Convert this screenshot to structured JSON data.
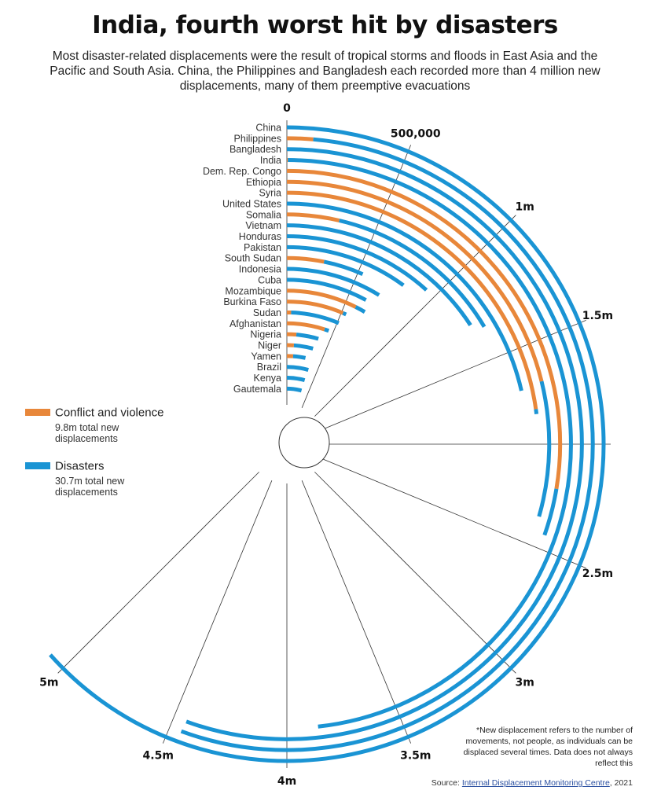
{
  "title": "India, fourth worst hit by disasters",
  "subtitle": "Most disaster-related displacements were the result of tropical storms and floods in East Asia and the Pacific and South Asia. China, the Philippines and Bangladesh each recorded more than 4 million new displacements, many of them preemptive evacuations",
  "legend": {
    "conflict": {
      "label": "Conflict and violence",
      "sub": "9.8m total new displacements",
      "color": "#E8873A"
    },
    "disasters": {
      "label": "Disasters",
      "sub": "30.7m total new displacements",
      "color": "#1A94D4"
    }
  },
  "note": "*New displacement refers to the number of movements, not people, as individuals can be displaced several times. Data does not always reflect this",
  "source": {
    "prefix": "Source: ",
    "link": "Internal Displacement Monitoring Centre",
    "suffix": ", 2021"
  },
  "chart_data": {
    "type": "radial-stacked-bar",
    "axis_range": [
      0,
      5000000
    ],
    "tick_labels": [
      "0",
      "500,000",
      "1m",
      "1.5m",
      "",
      "2.5m",
      "3m",
      "3.5m",
      "4m",
      "4.5m",
      "5m"
    ],
    "ticks": [
      0,
      500000,
      1000000,
      1500000,
      2000000,
      2500000,
      3000000,
      3500000,
      4000000,
      4500000,
      5000000
    ],
    "series_names": [
      "Conflict and violence",
      "Disasters"
    ],
    "categories": [
      "China",
      "Philippines",
      "Bangladesh",
      "India",
      "Dem. Rep. Congo",
      "Ethiopia",
      "Syria",
      "United States",
      "Somalia",
      "Vietnam",
      "Honduras",
      "Pakistan",
      "South Sudan",
      "Indonesia",
      "Cuba",
      "Mozambique",
      "Burkina Faso",
      "Sudan",
      "Afghanistan",
      "Nigeria",
      "Niger",
      "Yamen",
      "Brazil",
      "Kenya",
      "Gautemala"
    ],
    "series": [
      {
        "name": "Conflict and violence",
        "values": [
          0,
          110000,
          0,
          4000,
          2209000,
          1692000,
          1822000,
          0,
          293000,
          0,
          0,
          0,
          256000,
          0,
          0,
          592000,
          515000,
          41000,
          404000,
          110000,
          90000,
          90000,
          0,
          0,
          0
        ]
      },
      {
        "name": "Disasters",
        "values": [
          5074000,
          4339000,
          4443000,
          3856000,
          223000,
          664000,
          25000,
          1715000,
          1024000,
          1268000,
          937000,
          806000,
          278000,
          705000,
          639000,
          86000,
          30000,
          474000,
          46000,
          260000,
          250000,
          180000,
          358000,
          346000,
          339000
        ]
      }
    ]
  }
}
